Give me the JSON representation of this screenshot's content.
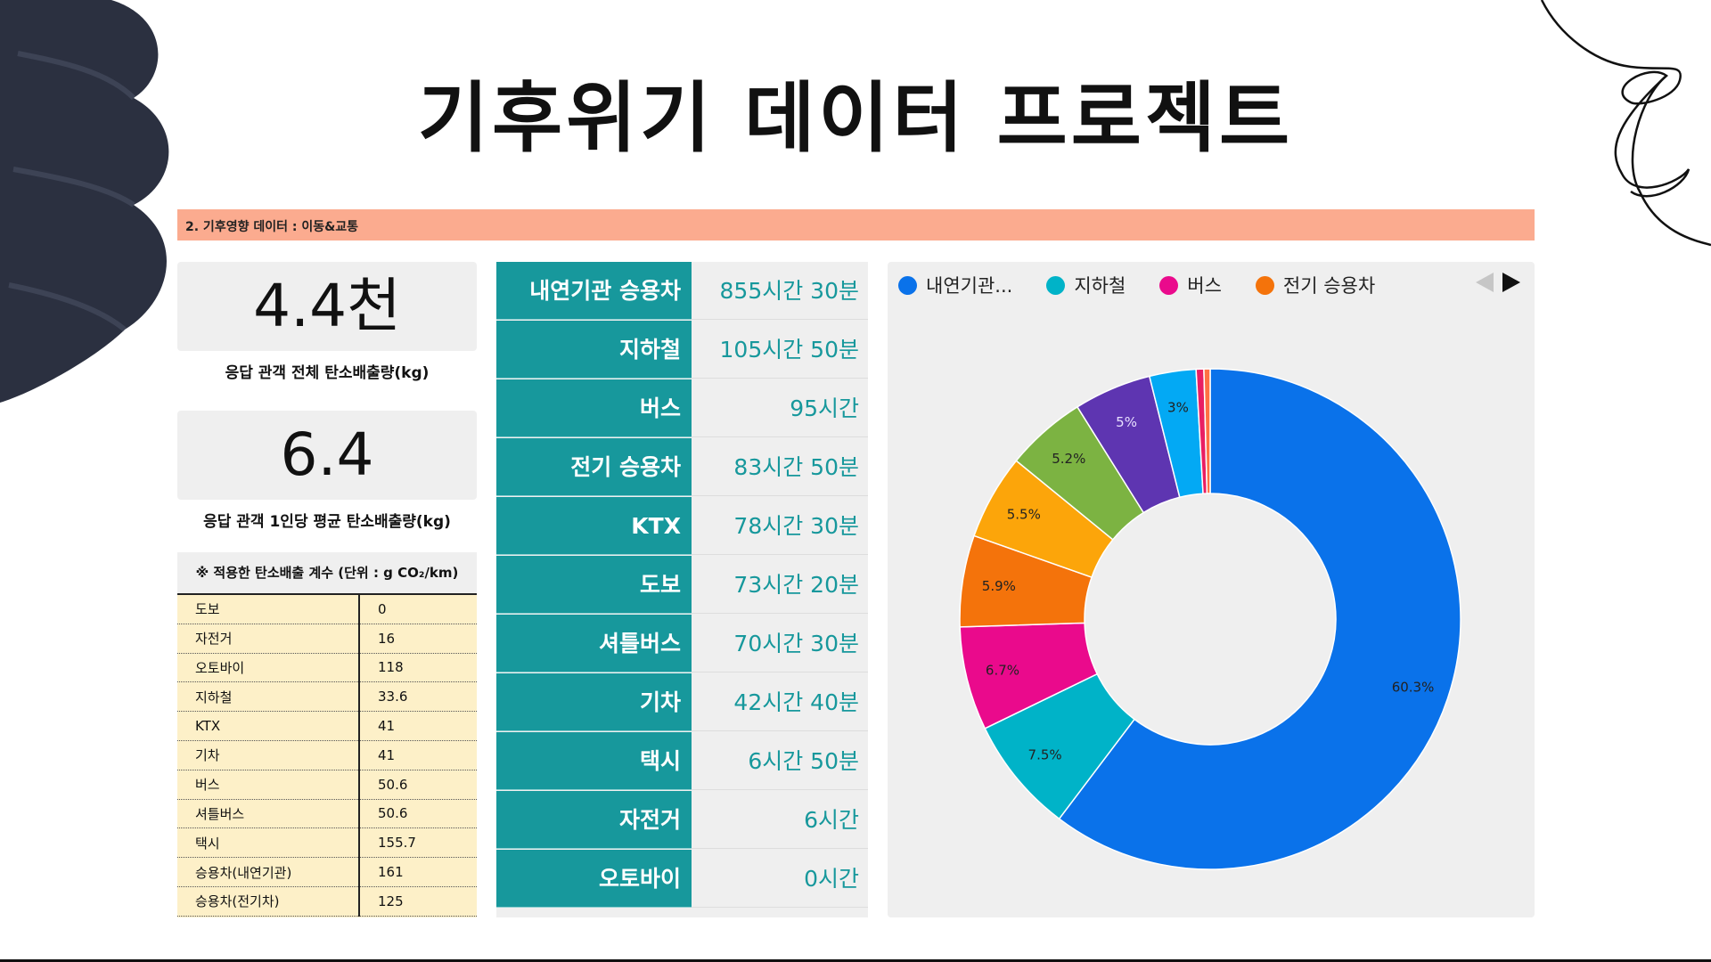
{
  "title": "기후위기 데이터 프로젝트",
  "section_label": "2. 기후영향 데이터 : 이동&교통",
  "stats": [
    {
      "value": "4.4천",
      "label": "응답 관객 전체 탄소배출량(kg)"
    },
    {
      "value": "6.4",
      "label": "응답 관객 1인당 평균 탄소배출량(kg)"
    }
  ],
  "emission_factors": {
    "header": "※ 적용한 탄소배출 계수 (단위 : g CO₂/km)",
    "rows": [
      {
        "mode": "도보",
        "value": "0"
      },
      {
        "mode": "자전거",
        "value": "16"
      },
      {
        "mode": "오토바이",
        "value": "118"
      },
      {
        "mode": "지하철",
        "value": "33.6"
      },
      {
        "mode": "KTX",
        "value": "41"
      },
      {
        "mode": "기차",
        "value": "41"
      },
      {
        "mode": "버스",
        "value": "50.6"
      },
      {
        "mode": "셔틀버스",
        "value": "50.6"
      },
      {
        "mode": "택시",
        "value": "155.7"
      },
      {
        "mode": "승용차(내연기관)",
        "value": "161"
      },
      {
        "mode": "승용차(전기차)",
        "value": "125"
      }
    ]
  },
  "travel_time": [
    {
      "mode": "내연기관 승용차",
      "time": "855시간 30분"
    },
    {
      "mode": "지하철",
      "time": "105시간 50분"
    },
    {
      "mode": "버스",
      "time": "95시간"
    },
    {
      "mode": "전기 승용차",
      "time": "83시간 50분"
    },
    {
      "mode": "KTX",
      "time": "78시간 30분"
    },
    {
      "mode": "도보",
      "time": "73시간 20분"
    },
    {
      "mode": "셔틀버스",
      "time": "70시간 30분"
    },
    {
      "mode": "기차",
      "time": "42시간 40분"
    },
    {
      "mode": "택시",
      "time": "6시간 50분"
    },
    {
      "mode": "자전거",
      "time": "6시간"
    },
    {
      "mode": "오토바이",
      "time": "0시간"
    }
  ],
  "legend": [
    {
      "label": "내연기관...",
      "color": "#0a72ea"
    },
    {
      "label": "지하철",
      "color": "#00b3c8"
    },
    {
      "label": "버스",
      "color": "#ea0a8c"
    },
    {
      "label": "전기 승용차",
      "color": "#f4730b"
    }
  ],
  "pager": {
    "prev_icon": "triangle-left-icon",
    "next_icon": "triangle-right-icon"
  },
  "chart_data": {
    "type": "pie",
    "donut": true,
    "legend_position": "top",
    "slices": [
      {
        "value": 60.3,
        "label": "60.3%",
        "color": "#0a72ea",
        "label_color": "#222222"
      },
      {
        "value": 7.5,
        "label": "7.5%",
        "color": "#00b3c8",
        "label_color": "#222222"
      },
      {
        "value": 6.7,
        "label": "6.7%",
        "color": "#ea0a8c",
        "label_color": "#222222"
      },
      {
        "value": 5.9,
        "label": "5.9%",
        "color": "#f4730b",
        "label_color": "#222222"
      },
      {
        "value": 5.5,
        "label": "5.5%",
        "color": "#fca50a",
        "label_color": "#222222"
      },
      {
        "value": 5.2,
        "label": "5.2%",
        "color": "#7cb342",
        "label_color": "#222222"
      },
      {
        "value": 5.0,
        "label": "5%",
        "color": "#5e35b1",
        "label_color": "#e8e0ff"
      },
      {
        "value": 3.0,
        "label": "3%",
        "color": "#03a9f4",
        "label_color": "#222222"
      },
      {
        "value": 0.5,
        "label": "",
        "color": "#e91e63",
        "label_color": "#222222"
      },
      {
        "value": 0.4,
        "label": "",
        "color": "#ff7043",
        "label_color": "#222222"
      }
    ]
  }
}
